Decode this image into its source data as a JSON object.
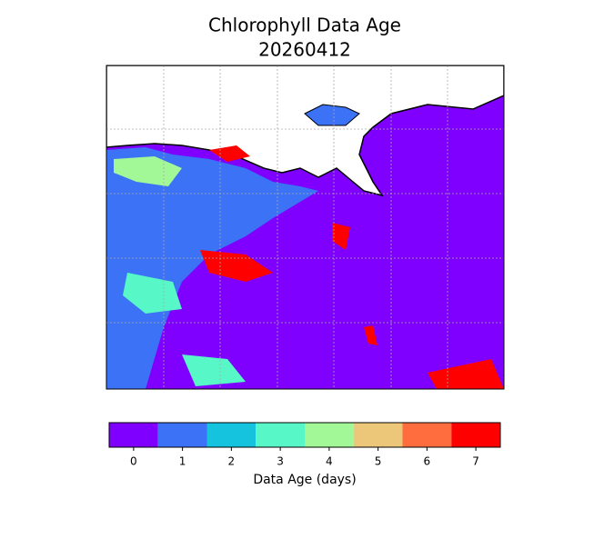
{
  "chart_data": {
    "type": "map",
    "title": "Chlorophyll Data Age",
    "subtitle": "20260412",
    "colorbar": {
      "label": "Data Age (days)",
      "clim": [
        -0.5,
        7.5
      ],
      "ticks": [
        0,
        1,
        2,
        3,
        4,
        5,
        6,
        7
      ],
      "colors": [
        "#7f00ff",
        "#3b72f6",
        "#15c3df",
        "#58f7c8",
        "#a2f897",
        "#ecc77a",
        "#ff6c3e",
        "#ff0000"
      ]
    }
  }
}
